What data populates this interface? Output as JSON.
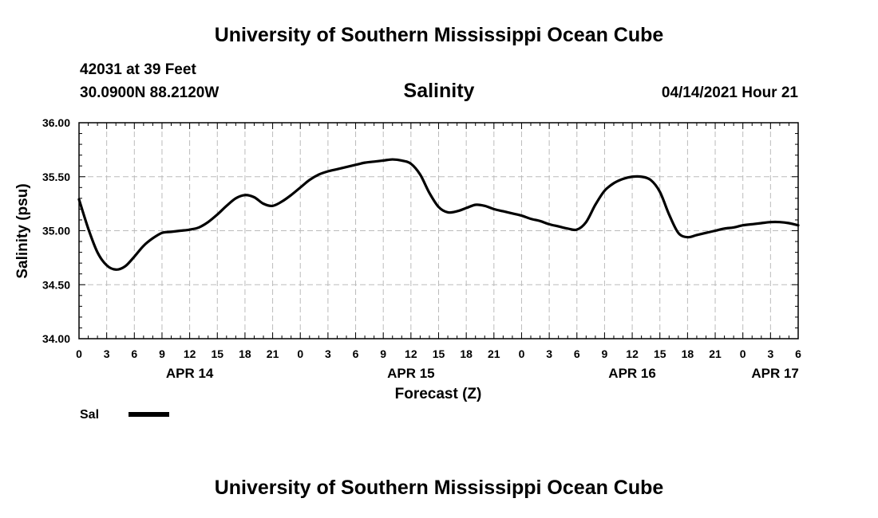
{
  "header": {
    "title": "University of Southern Mississippi Ocean Cube",
    "station": "42031 at 39 Feet",
    "coordinates": "30.0900N  88.2120W",
    "plot_title": "Salinity",
    "datetime": "04/14/2021 Hour 21"
  },
  "footer": {
    "title": "University of Southern Mississippi Ocean Cube"
  },
  "colors": {
    "line": "#000000",
    "grid": "#bbbbbb",
    "background": "#ffffff"
  },
  "chart_data": {
    "type": "line",
    "title": "Salinity",
    "xlabel": "Forecast (Z)",
    "ylabel": "Salinity (psu)",
    "xlim": [
      0,
      78
    ],
    "ylim": [
      34.0,
      36.0
    ],
    "x_tick_values": [
      0,
      3,
      6,
      9,
      12,
      15,
      18,
      21,
      24,
      27,
      30,
      33,
      36,
      39,
      42,
      45,
      48,
      51,
      54,
      57,
      60,
      63,
      66,
      69,
      72,
      75,
      78
    ],
    "x_tick_labels": [
      "0",
      "3",
      "6",
      "9",
      "12",
      "15",
      "18",
      "21",
      "0",
      "3",
      "6",
      "9",
      "12",
      "15",
      "18",
      "21",
      "0",
      "3",
      "6",
      "9",
      "12",
      "15",
      "18",
      "21",
      "0",
      "3",
      "6"
    ],
    "y_tick_values": [
      34.0,
      34.5,
      35.0,
      35.5,
      36.0
    ],
    "y_tick_labels": [
      "34.00",
      "34.50",
      "35.00",
      "35.50",
      "36.00"
    ],
    "date_labels": [
      {
        "label": "APR 14",
        "x": 12
      },
      {
        "label": "APR 15",
        "x": 36
      },
      {
        "label": "APR 16",
        "x": 60
      },
      {
        "label": "APR 17",
        "x": 75.5
      }
    ],
    "grid": true,
    "series": [
      {
        "name": "Sal",
        "x": [
          0,
          1,
          2,
          3,
          4,
          5,
          6,
          7,
          8,
          9,
          10,
          11,
          12,
          13,
          14,
          15,
          16,
          17,
          18,
          19,
          20,
          21,
          22,
          23,
          24,
          25,
          26,
          27,
          28,
          29,
          30,
          31,
          32,
          33,
          34,
          35,
          36,
          37,
          38,
          39,
          40,
          41,
          42,
          43,
          44,
          45,
          46,
          47,
          48,
          49,
          50,
          51,
          52,
          53,
          54,
          55,
          56,
          57,
          58,
          59,
          60,
          61,
          62,
          63,
          64,
          65,
          66,
          67,
          68,
          69,
          70,
          71,
          72,
          73,
          74,
          75,
          76,
          77,
          78
        ],
        "values": [
          35.29,
          35.02,
          34.8,
          34.68,
          34.64,
          34.67,
          34.76,
          34.86,
          34.93,
          34.98,
          34.99,
          35.0,
          35.01,
          35.03,
          35.08,
          35.15,
          35.23,
          35.3,
          35.33,
          35.31,
          35.25,
          35.23,
          35.27,
          35.33,
          35.4,
          35.47,
          35.52,
          35.55,
          35.57,
          35.59,
          35.61,
          35.63,
          35.64,
          35.65,
          35.66,
          35.65,
          35.62,
          35.52,
          35.35,
          35.22,
          35.17,
          35.18,
          35.21,
          35.24,
          35.23,
          35.2,
          35.18,
          35.16,
          35.14,
          35.11,
          35.09,
          35.06,
          35.04,
          35.02,
          35.01,
          35.08,
          35.24,
          35.37,
          35.44,
          35.48,
          35.5,
          35.5,
          35.47,
          35.36,
          35.15,
          34.98,
          34.94,
          34.96,
          34.98,
          35.0,
          35.02,
          35.03,
          35.05,
          35.06,
          35.07,
          35.08,
          35.08,
          35.07,
          35.05
        ]
      }
    ],
    "legend": [
      {
        "label": "Sal",
        "position": "bottom-left"
      }
    ]
  }
}
